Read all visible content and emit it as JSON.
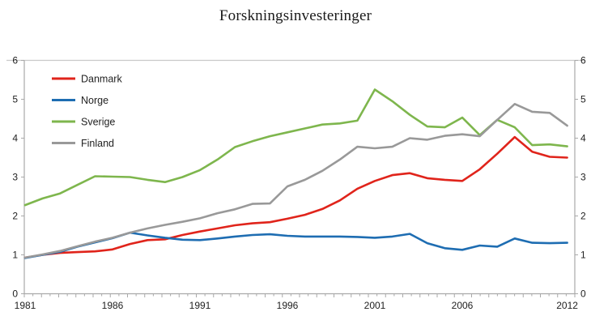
{
  "chart_data": {
    "type": "line",
    "title": "Forskningsinvesteringer",
    "xlabel": "",
    "ylabel": "",
    "ylim": [
      0,
      6
    ],
    "y_ticks": [
      0,
      1,
      2,
      3,
      4,
      5,
      6
    ],
    "grid": "off",
    "legend_position": "top-left-inside",
    "x": [
      1981,
      1982,
      1983,
      1984,
      1985,
      1986,
      1987,
      1988,
      1989,
      1990,
      1991,
      1992,
      1993,
      1994,
      1995,
      1996,
      1997,
      1998,
      1999,
      2000,
      2001,
      2002,
      2003,
      2004,
      2005,
      2006,
      2007,
      2008,
      2009,
      2010,
      2011,
      2012
    ],
    "x_tick_labels": [
      "1981",
      "1986",
      "1991",
      "1996",
      "2001",
      "2006",
      "2012"
    ],
    "x_tick_years": [
      1981,
      1986,
      1991,
      1996,
      2001,
      2006,
      2012
    ],
    "series": [
      {
        "name": "Danmark",
        "color": "#e0241b",
        "values": [
          0.93,
          1.0,
          1.05,
          1.07,
          1.09,
          1.14,
          1.28,
          1.38,
          1.4,
          1.51,
          1.6,
          1.68,
          1.76,
          1.81,
          1.84,
          1.93,
          2.03,
          2.18,
          2.4,
          2.7,
          2.9,
          3.05,
          3.1,
          2.97,
          2.93,
          2.9,
          3.2,
          3.6,
          4.03,
          3.65,
          3.52,
          3.5
        ]
      },
      {
        "name": "Norge",
        "color": "#1e6db2",
        "values": [
          0.92,
          1.0,
          1.08,
          1.21,
          1.32,
          1.43,
          1.57,
          1.5,
          1.44,
          1.39,
          1.38,
          1.42,
          1.47,
          1.51,
          1.53,
          1.49,
          1.47,
          1.47,
          1.47,
          1.46,
          1.44,
          1.47,
          1.54,
          1.3,
          1.17,
          1.13,
          1.24,
          1.21,
          1.42,
          1.31,
          1.3,
          1.31
        ]
      },
      {
        "name": "Sverige",
        "color": "#7eb64d",
        "values": [
          2.28,
          2.45,
          2.58,
          2.8,
          3.02,
          3.01,
          3.0,
          2.93,
          2.87,
          3.0,
          3.18,
          3.45,
          3.77,
          3.92,
          4.05,
          4.15,
          4.25,
          4.35,
          4.38,
          4.45,
          5.25,
          4.95,
          4.6,
          4.3,
          4.28,
          4.53,
          4.08,
          4.47,
          4.28,
          3.82,
          3.84,
          3.79
        ]
      },
      {
        "name": "Finland",
        "color": "#999999",
        "values": [
          0.93,
          1.01,
          1.1,
          1.22,
          1.34,
          1.44,
          1.57,
          1.68,
          1.77,
          1.85,
          1.94,
          2.07,
          2.17,
          2.31,
          2.32,
          2.76,
          2.93,
          3.16,
          3.45,
          3.78,
          3.74,
          3.78,
          4.0,
          3.96,
          4.06,
          4.1,
          4.05,
          4.47,
          4.88,
          4.68,
          4.65,
          4.32
        ]
      }
    ],
    "colors": {
      "axis": "#a9a9a9",
      "top_border": "#c9c9c9",
      "text": "#222222",
      "background": "#ffffff"
    }
  }
}
